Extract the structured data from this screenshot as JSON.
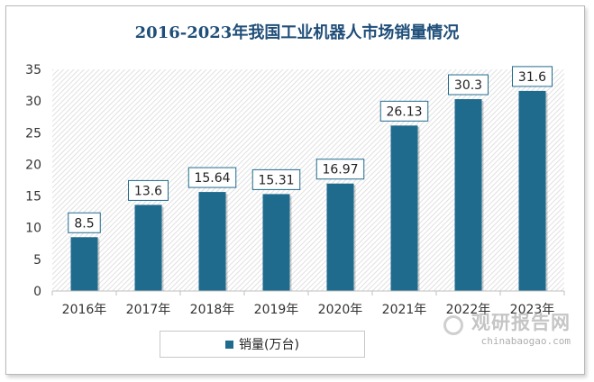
{
  "chart_data": {
    "type": "bar",
    "title": "2016-2023年我国工业机器人市场销量情况",
    "categories": [
      "2016年",
      "2017年",
      "2018年",
      "2019年",
      "2020年",
      "2021年",
      "2022年",
      "2023年"
    ],
    "series": [
      {
        "name": "销量(万台)",
        "values": [
          8.5,
          13.6,
          15.64,
          15.31,
          16.97,
          26.13,
          30.3,
          31.6
        ]
      }
    ],
    "value_labels": [
      "8.5",
      "13.6",
      "15.64",
      "15.31",
      "16.97",
      "26.13",
      "30.3",
      "31.6"
    ],
    "ylim": [
      0,
      35
    ],
    "yticks": [
      0,
      5,
      10,
      15,
      20,
      25,
      30,
      35
    ],
    "xlabel": "",
    "ylabel": "",
    "legend_position": "bottom",
    "bar_color": "#1f6b8e",
    "grid": false
  },
  "watermark": {
    "text": "观研报告网",
    "url": "chinabaogao.com"
  }
}
